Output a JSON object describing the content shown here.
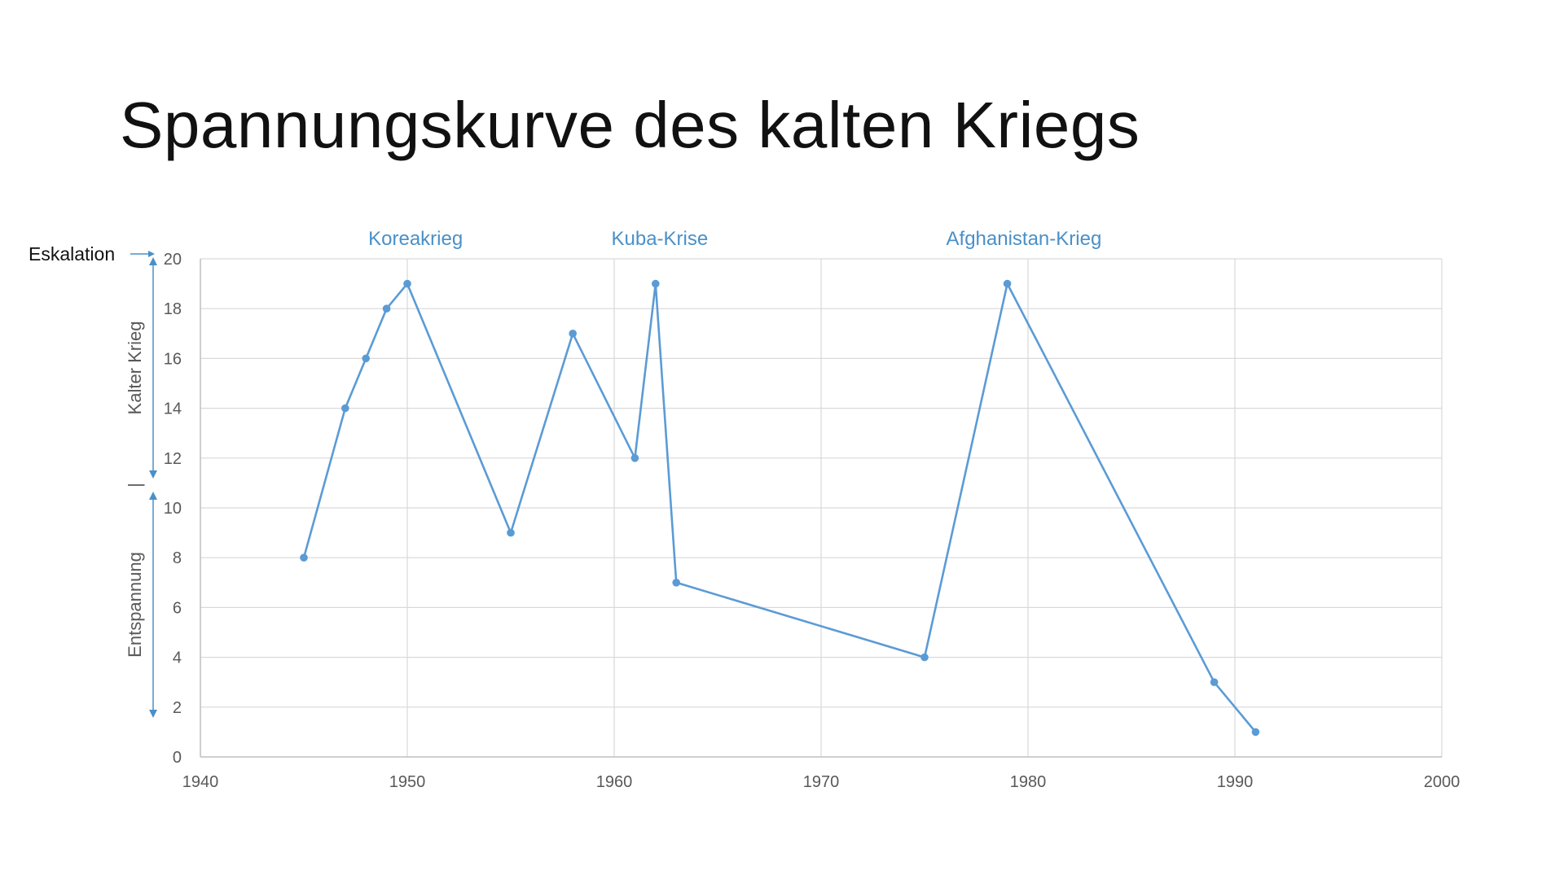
{
  "slide": {
    "title": "Spannungskurve des kalten Kriegs"
  },
  "chart_data": {
    "type": "line",
    "title": "",
    "xlabel": "",
    "ylabel": "",
    "xlim": [
      1940,
      2000
    ],
    "ylim": [
      0,
      20
    ],
    "x_ticks": [
      1940,
      1950,
      1960,
      1970,
      1980,
      1990,
      2000
    ],
    "y_ticks": [
      0,
      2,
      4,
      6,
      8,
      10,
      12,
      14,
      16,
      18,
      20
    ],
    "grid": true,
    "series": [
      {
        "x": [
          1945,
          1947,
          1948,
          1949,
          1950,
          1955,
          1958,
          1961,
          1962,
          1963,
          1975,
          1979,
          1989,
          1991
        ],
        "y": [
          8,
          14,
          16,
          18,
          19,
          9,
          17,
          12,
          19,
          7,
          4,
          19,
          3,
          1
        ]
      }
    ],
    "annotations": [
      {
        "text": "Koreakrieg",
        "x": 1950.4
      },
      {
        "text": "Kuba-Krise",
        "x": 1962.2
      },
      {
        "text": "Afghanistan-Krieg",
        "x": 1979.8
      }
    ],
    "side_labels": {
      "escalation": "Eskalation",
      "upper": "Kalter Krieg",
      "lower": "Entspannung",
      "divider": "|"
    },
    "colors": {
      "series": "#5b9bd5",
      "annotation": "#4a90c8",
      "grid": "#d9d9d9",
      "axis": "#bfbfbf"
    }
  }
}
